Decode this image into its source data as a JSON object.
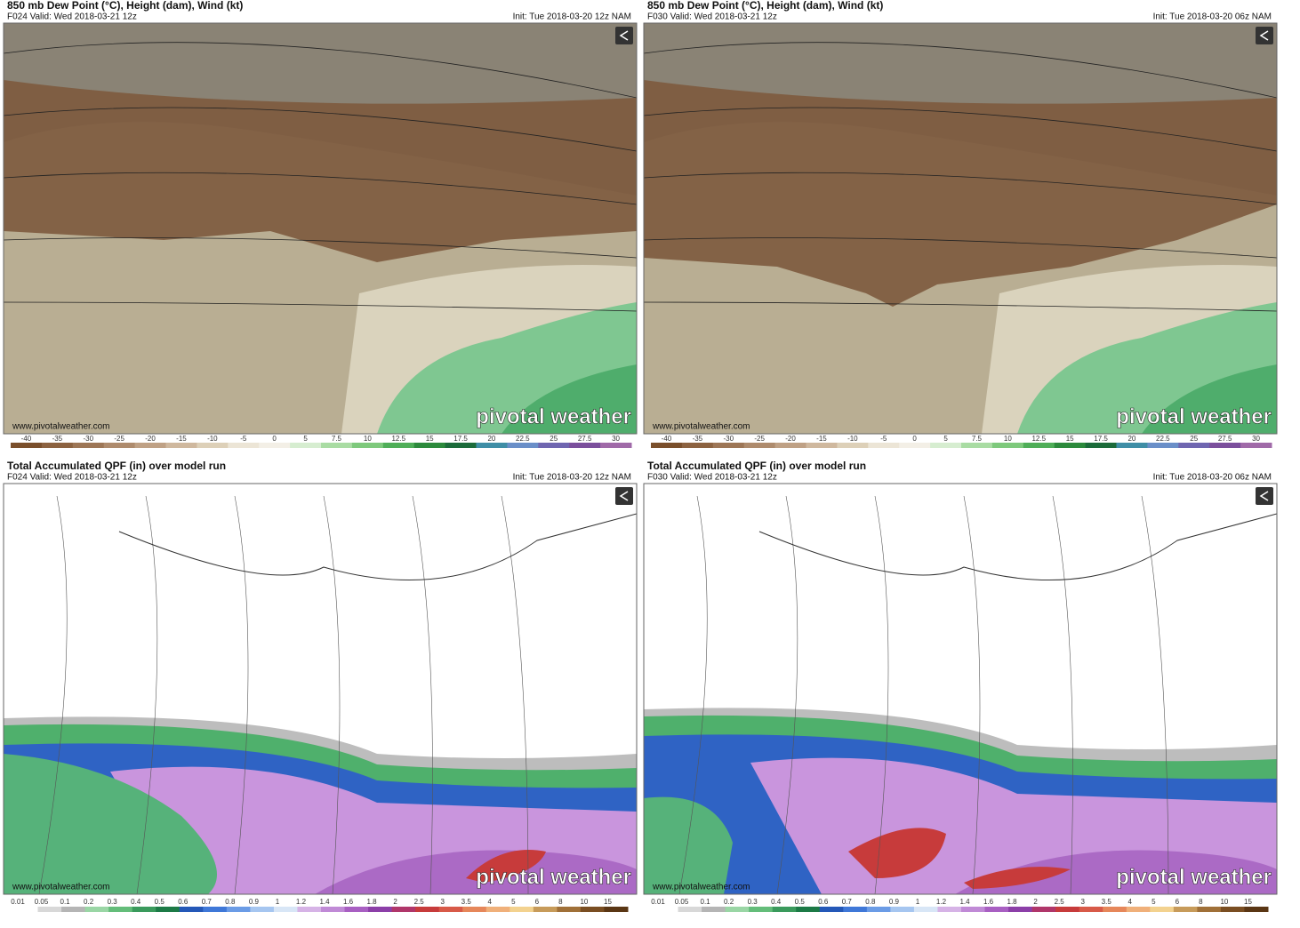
{
  "panels": [
    {
      "title": "850 mb Dew Point (°C), Height (dam), Wind (kt)",
      "valid": "F024 Valid: Wed 2018-03-21 12z",
      "init": "Init: Tue 2018-03-20 12z NAM",
      "watermark": "pivotal weather",
      "url": "www.pivotalweather.com",
      "colorbar": [
        "-40",
        "-35",
        "-30",
        "-25",
        "-20",
        "-15",
        "-10",
        "-5",
        "0",
        "5",
        "7.5",
        "10",
        "12.5",
        "15",
        "17.5",
        "20",
        "22.5",
        "25",
        "27.5",
        "30"
      ]
    },
    {
      "title": "850 mb Dew Point (°C), Height (dam), Wind (kt)",
      "valid": "F030 Valid: Wed 2018-03-21 12z",
      "init": "Init: Tue 2018-03-20 06z NAM",
      "watermark": "pivotal weather",
      "url": "www.pivotalweather.com",
      "colorbar": [
        "-40",
        "-35",
        "-30",
        "-25",
        "-20",
        "-15",
        "-10",
        "-5",
        "0",
        "5",
        "7.5",
        "10",
        "12.5",
        "15",
        "17.5",
        "20",
        "22.5",
        "25",
        "27.5",
        "30"
      ]
    },
    {
      "title": "Total Accumulated QPF (in) over model run",
      "valid": "F024 Valid: Wed 2018-03-21 12z",
      "init": "Init: Tue 2018-03-20 12z NAM",
      "watermark": "pivotal weather",
      "url": "www.pivotalweather.com",
      "colorbar": [
        "0.01",
        "0.05",
        "0.1",
        "0.2",
        "0.3",
        "0.4",
        "0.5",
        "0.6",
        "0.7",
        "0.8",
        "0.9",
        "1",
        "1.2",
        "1.4",
        "1.6",
        "1.8",
        "2",
        "2.5",
        "3",
        "3.5",
        "4",
        "5",
        "6",
        "8",
        "10",
        "15"
      ]
    },
    {
      "title": "Total Accumulated QPF (in) over model run",
      "valid": "F030 Valid: Wed 2018-03-21 12z",
      "init": "Init: Tue 2018-03-20 06z NAM",
      "watermark": "pivotal weather",
      "url": "www.pivotalweather.com",
      "colorbar": [
        "0.01",
        "0.05",
        "0.1",
        "0.2",
        "0.3",
        "0.4",
        "0.5",
        "0.6",
        "0.7",
        "0.8",
        "0.9",
        "1",
        "1.2",
        "1.4",
        "1.6",
        "1.8",
        "2",
        "2.5",
        "3",
        "3.5",
        "4",
        "5",
        "6",
        "8",
        "10",
        "15"
      ]
    }
  ]
}
